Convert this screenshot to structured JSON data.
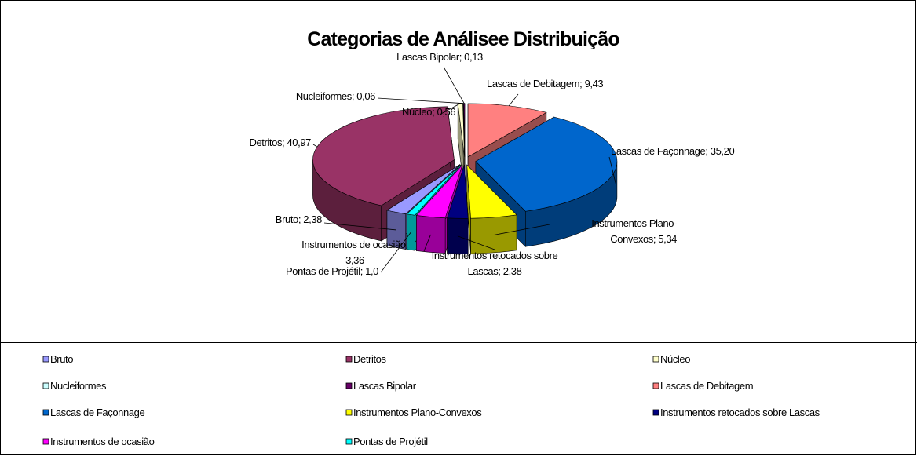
{
  "chart_data": {
    "type": "pie3d",
    "title": "Categorias de Análisee Distribuição",
    "categories": [
      "Bruto",
      "Detritos",
      "Núcleo",
      "Nucleiformes",
      "Lascas Bipolar",
      "Lascas de Debitagem",
      "Lascas de Façonnage",
      "Instrumentos Plano-Convexos",
      "Instrumentos retocados sobre Lascas",
      "Instrumentos de ocasião",
      "Pontas de Projétil"
    ],
    "values": [
      2.38,
      40.97,
      0.56,
      0.06,
      0.13,
      9.43,
      35.2,
      5.34,
      2.38,
      3.36,
      1.0
    ],
    "value_labels": [
      "Bruto; 2,38",
      "Detritos; 40,97",
      "Núcleo; 0,56",
      "Nucleiformes; 0,06",
      "Lascas Bipolar; 0,13",
      "Lascas de Debitagem; 9,43",
      "Lascas de Façonnage; 35,20",
      "Instrumentos Plano-\nConvexos; 5,34",
      "Instrumentos retocados sobre\nLascas; 2,38",
      "Instrumentos de ocasião;\n3,36",
      "Pontas de Projétil; 1,0"
    ],
    "colors": [
      "#9999FF",
      "#993366",
      "#FFFFCC",
      "#CCFFFF",
      "#660066",
      "#FF8080",
      "#0066CC",
      "#FFFF00",
      "#000080",
      "#FF00FF",
      "#00FFFF"
    ],
    "legend": "bottom"
  }
}
